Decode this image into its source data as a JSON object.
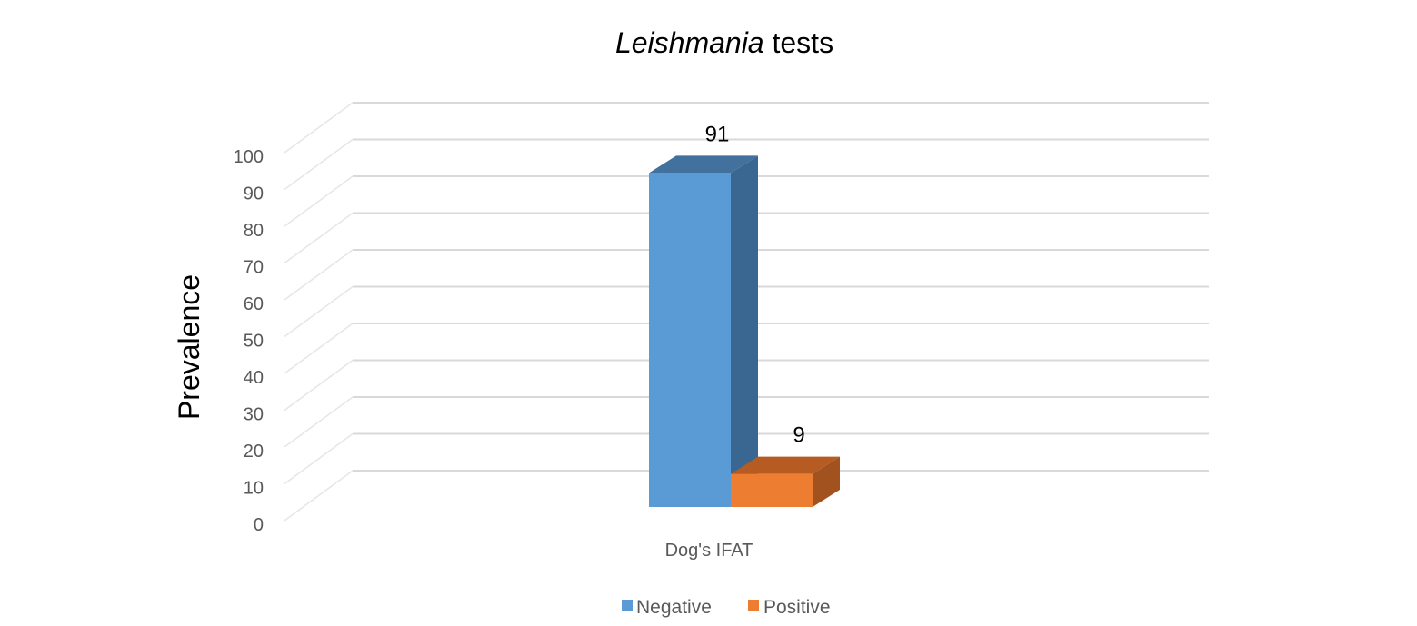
{
  "chart_data": {
    "type": "bar",
    "title": {
      "italic_part": "Leishmania",
      "plain_part": " tests"
    },
    "xlabel": "",
    "ylabel": "Prevalence",
    "ylim": [
      0,
      100
    ],
    "yticks": [
      "0",
      "10",
      "20",
      "30",
      "40",
      "50",
      "60",
      "70",
      "80",
      "90",
      "100"
    ],
    "categories": [
      "Dog's IFAT"
    ],
    "series": [
      {
        "name": "Negative",
        "values": [
          91
        ],
        "color": "#5B9BD5",
        "side_color": "#3A6791",
        "top_color": "#41719C"
      },
      {
        "name": "Positive",
        "values": [
          9
        ],
        "color": "#ED7D31",
        "side_color": "#A2521E",
        "top_color": "#B65B22"
      }
    ],
    "data_labels": [
      "91",
      "9"
    ],
    "grid": true,
    "legend": "bottom",
    "style": "3d-column"
  }
}
